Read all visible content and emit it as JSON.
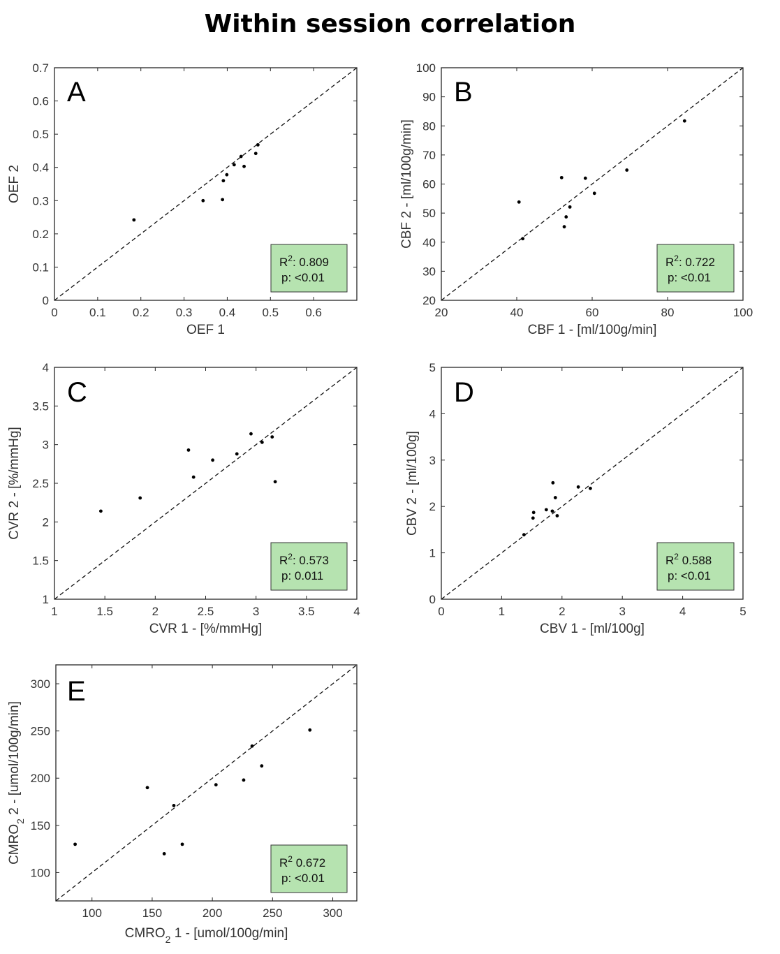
{
  "title": "Within session correlation",
  "colors": {
    "stat_box_fill": "#b6e3b0",
    "stat_box_border": "#333333",
    "point": "#000000",
    "axis": "#262626"
  },
  "chart_data": [
    {
      "type": "scatter",
      "panel": "A",
      "xlabel": "OEF 1",
      "ylabel": "OEF 2",
      "xlim": [
        0,
        0.7
      ],
      "ylim": [
        0,
        0.7
      ],
      "xticks": [
        0,
        0.1,
        0.2,
        0.3,
        0.4,
        0.5,
        0.6
      ],
      "xtick_labels": [
        "0",
        "0.1",
        "0.2",
        "0.3",
        "0.4",
        "0.5",
        "0.6"
      ],
      "yticks": [
        0,
        0.1,
        0.2,
        0.3,
        0.4,
        0.5,
        0.6,
        0.7
      ],
      "ytick_labels": [
        "0",
        "0.1",
        "0.2",
        "0.3",
        "0.4",
        "0.5",
        "0.6",
        "0.7"
      ],
      "identity_line": true,
      "points": [
        [
          0.184,
          0.242
        ],
        [
          0.344,
          0.3
        ],
        [
          0.389,
          0.303
        ],
        [
          0.391,
          0.36
        ],
        [
          0.399,
          0.378
        ],
        [
          0.416,
          0.408
        ],
        [
          0.432,
          0.433
        ],
        [
          0.439,
          0.403
        ],
        [
          0.466,
          0.442
        ],
        [
          0.471,
          0.468
        ]
      ],
      "stats": {
        "r2_prefix": "R",
        "r2_sup": "2",
        "r2_suffix": ": 0.809",
        "p_text": "p: <0.01"
      }
    },
    {
      "type": "scatter",
      "panel": "B",
      "xlabel": "CBF 1 - [ml/100g/min]",
      "ylabel": "CBF 2 - [ml/100g/min]",
      "xlim": [
        20,
        100
      ],
      "ylim": [
        20,
        100
      ],
      "xticks": [
        20,
        40,
        60,
        80,
        100
      ],
      "xtick_labels": [
        "20",
        "40",
        "60",
        "80",
        "100"
      ],
      "yticks": [
        20,
        30,
        40,
        50,
        60,
        70,
        80,
        90,
        100
      ],
      "ytick_labels": [
        "20",
        "30",
        "40",
        "50",
        "60",
        "70",
        "80",
        "90",
        "100"
      ],
      "identity_line": true,
      "points": [
        [
          40.6,
          53.8
        ],
        [
          41.6,
          41.2
        ],
        [
          51.9,
          62.2
        ],
        [
          52.6,
          45.3
        ],
        [
          53.1,
          48.7
        ],
        [
          54.1,
          52.1
        ],
        [
          58.2,
          62.0
        ],
        [
          60.6,
          56.8
        ],
        [
          69.2,
          64.8
        ],
        [
          84.5,
          81.7
        ]
      ],
      "stats": {
        "r2_prefix": "R",
        "r2_sup": "2",
        "r2_suffix": ": 0.722",
        "p_text": "p: <0.01"
      }
    },
    {
      "type": "scatter",
      "panel": "C",
      "xlabel": "CVR 1 - [%/mmHg]",
      "ylabel": "CVR 2 - [%/mmHg]",
      "xlim": [
        1,
        4
      ],
      "ylim": [
        1,
        4
      ],
      "xticks": [
        1,
        1.5,
        2,
        2.5,
        3,
        3.5,
        4
      ],
      "xtick_labels": [
        "1",
        "1.5",
        "2",
        "2.5",
        "3",
        "3.5",
        "4"
      ],
      "yticks": [
        1,
        1.5,
        2,
        2.5,
        3,
        3.5,
        4
      ],
      "ytick_labels": [
        "1",
        "1.5",
        "2",
        "2.5",
        "3",
        "3.5",
        "4"
      ],
      "identity_line": true,
      "points": [
        [
          1.46,
          2.14
        ],
        [
          1.85,
          2.31
        ],
        [
          2.33,
          2.93
        ],
        [
          2.38,
          2.58
        ],
        [
          2.57,
          2.8
        ],
        [
          2.81,
          2.88
        ],
        [
          2.95,
          3.14
        ],
        [
          3.06,
          3.03
        ],
        [
          3.16,
          3.1
        ],
        [
          3.19,
          2.52
        ]
      ],
      "stats": {
        "r2_prefix": "R",
        "r2_sup": "2",
        "r2_suffix": ": 0.573",
        "p_text": "p: 0.011"
      }
    },
    {
      "type": "scatter",
      "panel": "D",
      "xlabel": "CBV 1 - [ml/100g]",
      "ylabel": "CBV 2 - [ml/100g]",
      "xlim": [
        0,
        5
      ],
      "ylim": [
        0,
        5
      ],
      "xticks": [
        0,
        1,
        2,
        3,
        4,
        5
      ],
      "xtick_labels": [
        "0",
        "1",
        "2",
        "3",
        "4",
        "5"
      ],
      "yticks": [
        0,
        1,
        2,
        3,
        4,
        5
      ],
      "ytick_labels": [
        "0",
        "1",
        "2",
        "3",
        "4",
        "5"
      ],
      "identity_line": true,
      "points": [
        [
          1.37,
          1.39
        ],
        [
          1.52,
          1.75
        ],
        [
          1.53,
          1.87
        ],
        [
          1.74,
          1.93
        ],
        [
          1.84,
          1.9
        ],
        [
          1.85,
          2.51
        ],
        [
          1.89,
          2.19
        ],
        [
          1.92,
          1.8
        ],
        [
          2.27,
          2.42
        ],
        [
          2.47,
          2.39
        ]
      ],
      "stats": {
        "r2_prefix": "R",
        "r2_sup": "2",
        "r2_suffix": " 0.588",
        "p_text": "p: <0.01"
      }
    },
    {
      "type": "scatter",
      "panel": "E",
      "xlabel_main": "CMRO",
      "xlabel_sub": "2",
      "xlabel_rest": " 1 - [umol/100g/min]",
      "ylabel_main": "CMRO",
      "ylabel_sub": "2",
      "ylabel_rest": " 2  -   [umol/100g/min]",
      "xlim": [
        70,
        320
      ],
      "ylim": [
        70,
        320
      ],
      "xticks": [
        100,
        150,
        200,
        250,
        300
      ],
      "xtick_labels": [
        "100",
        "150",
        "200",
        "250",
        "300"
      ],
      "yticks": [
        100,
        150,
        200,
        250,
        300
      ],
      "ytick_labels": [
        "100",
        "150",
        "200",
        "250",
        "300"
      ],
      "identity_line": true,
      "points": [
        [
          86,
          130
        ],
        [
          146,
          190
        ],
        [
          168,
          171
        ],
        [
          160,
          120
        ],
        [
          175,
          130
        ],
        [
          203,
          193
        ],
        [
          226,
          198
        ],
        [
          233,
          234
        ],
        [
          241,
          213
        ],
        [
          281,
          251
        ]
      ],
      "stats": {
        "r2_prefix": "R",
        "r2_sup": "2",
        "r2_suffix": " 0.672",
        "p_text": "p: <0.01"
      }
    }
  ]
}
